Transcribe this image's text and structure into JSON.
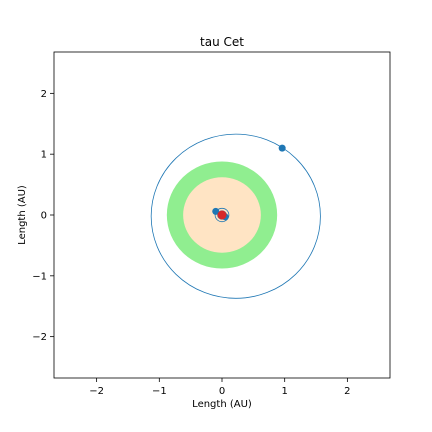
{
  "chart_data": {
    "type": "scatter",
    "title": "tau Cet",
    "xlabel": "Length (AU)",
    "ylabel": "Length (AU)",
    "xlim": [
      -2.68,
      2.68
    ],
    "ylim": [
      -2.68,
      2.68
    ],
    "xticks": [
      -2,
      -1,
      0,
      1,
      2
    ],
    "yticks": [
      -2,
      -1,
      0,
      1,
      2
    ],
    "grid": false,
    "zones": [
      {
        "name": "outer",
        "radius": 0.88,
        "color": "#90ee90"
      },
      {
        "name": "inner",
        "radius": 0.62,
        "color": "#ffe4c4"
      }
    ],
    "orbits": [
      {
        "center": [
          0.22,
          -0.02
        ],
        "radius": 1.35,
        "color": "#1f77b4"
      },
      {
        "center": [
          0.0,
          0.0
        ],
        "radius": 0.11,
        "color": "#1f77b4"
      },
      {
        "center": [
          0.0,
          0.0
        ],
        "radius": 0.07,
        "color": "#1f77b4"
      }
    ],
    "planets": [
      {
        "x": 0.96,
        "y": 1.1,
        "color": "#1f77b4"
      },
      {
        "x": -0.1,
        "y": 0.06,
        "color": "#1f77b4"
      },
      {
        "x": 0.05,
        "y": -0.03,
        "color": "#1f77b4"
      }
    ],
    "star": {
      "x": 0.0,
      "y": 0.0,
      "color": "#d62728"
    }
  }
}
